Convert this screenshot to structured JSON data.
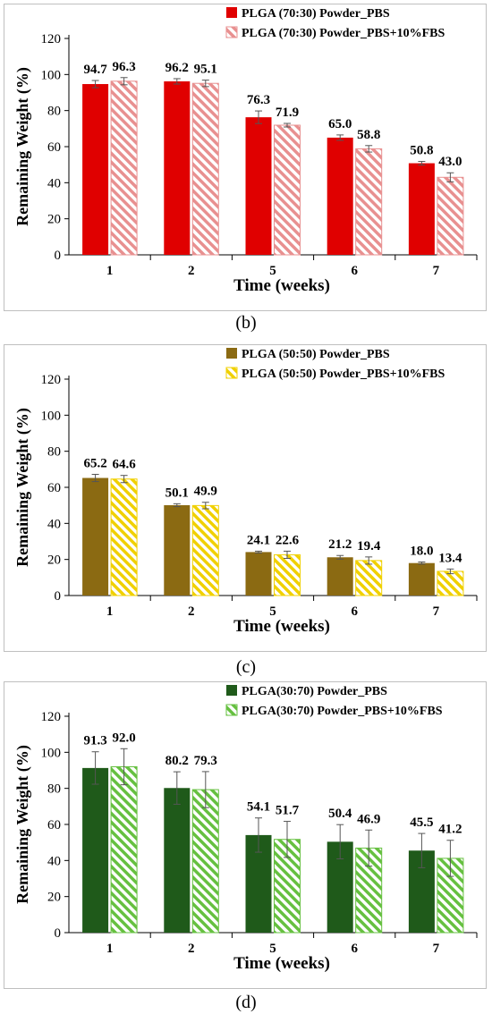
{
  "panels": [
    {
      "letter": "(b)",
      "chart_data": {
        "type": "bar",
        "categories": [
          "1",
          "2",
          "5",
          "6",
          "7"
        ],
        "series": [
          {
            "name": "PLGA (70:30) Powder_PBS",
            "values": [
              94.7,
              96.2,
              76.3,
              65.0,
              50.8
            ],
            "errors": [
              2.0,
              1.5,
              3.5,
              1.5,
              1.0
            ],
            "color": "#e00000",
            "hatched": false
          },
          {
            "name": "PLGA (70:30) Powder_PBS+10%FBS",
            "values": [
              96.3,
              95.1,
              71.9,
              58.8,
              43.0
            ],
            "errors": [
              2.0,
              1.8,
              1.0,
              1.8,
              2.5
            ],
            "color": "#e89090",
            "hatched": true
          }
        ],
        "value_labels": [
          [
            "94.7",
            "96.2",
            "76.3",
            "65.0",
            "50.8"
          ],
          [
            "96.3",
            "95.1",
            "71.9",
            "58.8",
            "43.0"
          ]
        ],
        "xlabel": "Time (weeks)",
        "ylabel": "Remaining Weight (%)",
        "ylim": [
          0,
          120
        ],
        "yticks": [
          "0",
          "20",
          "40",
          "60",
          "80",
          "100",
          "120"
        ],
        "grid": false,
        "legend_position": "top-right"
      }
    },
    {
      "letter": "(c)",
      "chart_data": {
        "type": "bar",
        "categories": [
          "1",
          "2",
          "5",
          "6",
          "7"
        ],
        "series": [
          {
            "name": "PLGA (50:50) Powder_PBS",
            "values": [
              65.2,
              50.1,
              24.1,
              21.2,
              18.0
            ],
            "errors": [
              2.0,
              0.8,
              0.5,
              1.0,
              0.6
            ],
            "color": "#8b6a12",
            "hatched": false
          },
          {
            "name": "PLGA (50:50) Powder_PBS+10%FBS",
            "values": [
              64.6,
              49.9,
              22.6,
              19.4,
              13.4
            ],
            "errors": [
              2.0,
              1.8,
              2.0,
              2.0,
              1.3
            ],
            "color": "#f0d000",
            "hatched": true
          }
        ],
        "value_labels": [
          [
            "65.2",
            "50.1",
            "24.1",
            "21.2",
            "18.0"
          ],
          [
            "64.6",
            "49.9",
            "22.6",
            "19.4",
            "13.4"
          ]
        ],
        "xlabel": "Time (weeks)",
        "ylabel": "Remaining Weight (%)",
        "ylim": [
          0,
          120
        ],
        "yticks": [
          "0",
          "20",
          "40",
          "60",
          "80",
          "100",
          "120"
        ],
        "grid": false,
        "legend_position": "top-right"
      }
    },
    {
      "letter": "(d)",
      "chart_data": {
        "type": "bar",
        "categories": [
          "1",
          "2",
          "5",
          "6",
          "7"
        ],
        "series": [
          {
            "name": "PLGA(30:70) Powder_PBS",
            "values": [
              91.3,
              80.2,
              54.1,
              50.4,
              45.5
            ],
            "errors": [
              9.0,
              9.0,
              9.5,
              9.5,
              9.5
            ],
            "color": "#1f5a1a",
            "hatched": false
          },
          {
            "name": "PLGA(30:70) Powder_PBS+10%FBS",
            "values": [
              92.0,
              79.3,
              51.7,
              46.9,
              41.2
            ],
            "errors": [
              10.0,
              10.0,
              10.0,
              10.0,
              10.0
            ],
            "color": "#66c040",
            "hatched": true
          }
        ],
        "value_labels": [
          [
            "91.3",
            "80.2",
            "54.1",
            "50.4",
            "45.5"
          ],
          [
            "92.0",
            "79.3",
            "51.7",
            "46.9",
            "41.2"
          ]
        ],
        "xlabel": "Time (weeks)",
        "ylabel": "Remaining Weight (%)",
        "ylim": [
          0,
          120
        ],
        "yticks": [
          "0",
          "20",
          "40",
          "60",
          "80",
          "100",
          "120"
        ],
        "grid": false,
        "legend_position": "top-right"
      }
    }
  ]
}
